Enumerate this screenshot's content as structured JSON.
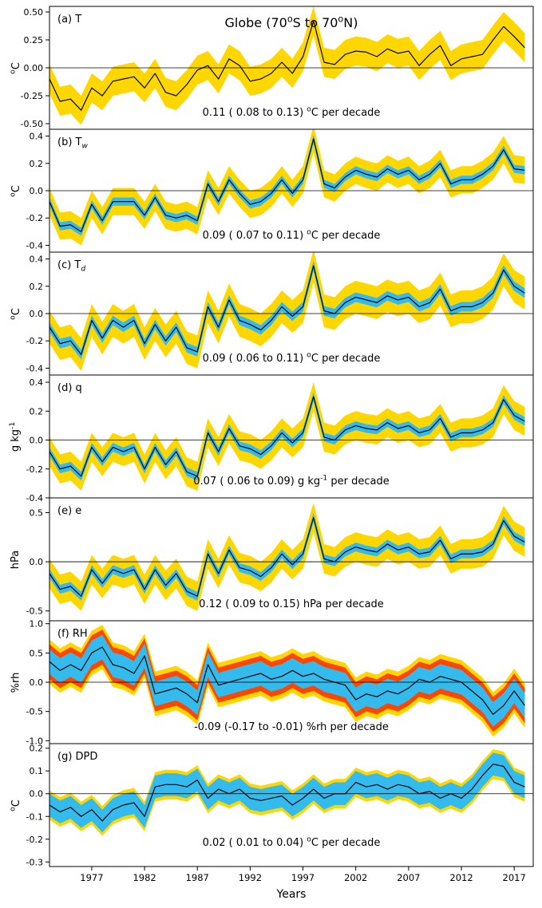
{
  "title": {
    "p1": "Globe (70",
    "s1": "o",
    "p2": "S to 70",
    "s2": "o",
    "p3": "N)"
  },
  "xlabel": "Years",
  "colors": {
    "band_yellow": "#FFD700",
    "band_cyan": "#33BBEE",
    "band_orange": "#FF4500",
    "line": "#000000"
  },
  "chart_data": {
    "type": "line",
    "start_year": 1973,
    "end_year": 2018,
    "x_range": [
      1973,
      2018.8
    ],
    "x_ticks": [
      1977,
      1982,
      1987,
      1992,
      1997,
      2002,
      2007,
      2012,
      2017
    ],
    "panels": [
      {
        "id": "a",
        "label_pre": "(a) T",
        "label_sub": "",
        "ylabel_pre": "",
        "ylabel_sup": "o",
        "ylabel_post": "C",
        "ylim": [
          -0.55,
          0.55
        ],
        "ytick_vals": [
          0.5,
          0.25,
          0.0,
          -0.25,
          -0.5
        ],
        "ytick_labels": [
          "0.50",
          "0.25",
          "0.00",
          "-0.25",
          "-0.50"
        ],
        "trend_pre": "0.11 ( 0.08 to  0.13) ",
        "trend_sup": "o",
        "trend_post": "C per decade",
        "bands": [
          {
            "color": "#FFD700",
            "half_width": 0.13
          }
        ],
        "line_color": "#000000",
        "values": [
          -0.1,
          -0.3,
          -0.28,
          -0.38,
          -0.18,
          -0.25,
          -0.12,
          -0.1,
          -0.08,
          -0.18,
          -0.05,
          -0.22,
          -0.25,
          -0.15,
          -0.02,
          0.02,
          -0.1,
          0.08,
          0.02,
          -0.12,
          -0.1,
          -0.05,
          0.05,
          -0.05,
          0.1,
          0.42,
          0.05,
          0.03,
          0.12,
          0.15,
          0.14,
          0.1,
          0.17,
          0.13,
          0.15,
          0.02,
          0.12,
          0.2,
          0.02,
          0.08,
          0.1,
          0.12,
          0.25,
          0.37,
          0.28,
          0.18
        ]
      },
      {
        "id": "b",
        "label_pre": "(b) T",
        "label_sub": "w",
        "ylabel_pre": "",
        "ylabel_sup": "o",
        "ylabel_post": "C",
        "ylim": [
          -0.45,
          0.45
        ],
        "ytick_vals": [
          0.4,
          0.2,
          0.0,
          -0.2,
          -0.4
        ],
        "ytick_labels": [
          "0.4",
          "0.2",
          "0.0",
          "-0.2",
          "-0.4"
        ],
        "trend_pre": "0.09 ( 0.07 to  0.11) ",
        "trend_sup": "o",
        "trend_post": "C per decade",
        "bands": [
          {
            "color": "#FFD700",
            "half_width": 0.1
          },
          {
            "color": "#33BBEE",
            "half_width": 0.03
          }
        ],
        "line_color": "#000000",
        "values": [
          -0.08,
          -0.26,
          -0.25,
          -0.3,
          -0.1,
          -0.22,
          -0.08,
          -0.08,
          -0.08,
          -0.18,
          -0.05,
          -0.18,
          -0.2,
          -0.18,
          -0.22,
          0.05,
          -0.08,
          0.08,
          -0.02,
          -0.1,
          -0.08,
          -0.02,
          0.08,
          -0.02,
          0.08,
          0.38,
          0.05,
          0.02,
          0.1,
          0.15,
          0.12,
          0.1,
          0.16,
          0.12,
          0.15,
          0.08,
          0.12,
          0.2,
          0.05,
          0.08,
          0.08,
          0.12,
          0.18,
          0.3,
          0.16,
          0.15
        ]
      },
      {
        "id": "c",
        "label_pre": "(c) T",
        "label_sub": "d",
        "ylabel_pre": "",
        "ylabel_sup": "o",
        "ylabel_post": "C",
        "ylim": [
          -0.45,
          0.45
        ],
        "ytick_vals": [
          0.4,
          0.2,
          0.0,
          -0.2,
          -0.4
        ],
        "ytick_labels": [
          "0.4",
          "0.2",
          "0.0",
          "-0.2",
          "-0.4"
        ],
        "trend_pre": "0.09 ( 0.06 to  0.11) ",
        "trend_sup": "o",
        "trend_post": "C per decade",
        "bands": [
          {
            "color": "#FFD700",
            "half_width": 0.12
          },
          {
            "color": "#33BBEE",
            "half_width": 0.035
          }
        ],
        "line_color": "#000000",
        "values": [
          -0.1,
          -0.22,
          -0.2,
          -0.3,
          -0.05,
          -0.18,
          -0.05,
          -0.1,
          -0.05,
          -0.22,
          -0.08,
          -0.2,
          -0.1,
          -0.25,
          -0.28,
          0.05,
          -0.1,
          0.1,
          -0.05,
          -0.08,
          -0.12,
          -0.05,
          0.05,
          -0.02,
          0.05,
          0.35,
          0.02,
          0.0,
          0.08,
          0.12,
          0.1,
          0.08,
          0.13,
          0.1,
          0.12,
          0.05,
          0.08,
          0.18,
          0.02,
          0.05,
          0.05,
          0.08,
          0.15,
          0.32,
          0.2,
          0.15
        ]
      },
      {
        "id": "d",
        "label_pre": "(d) q",
        "label_sub": "",
        "ylabel_pre": "g kg",
        "ylabel_sup": "-1",
        "ylabel_post": "",
        "ylim": [
          -0.4,
          0.45
        ],
        "ytick_vals": [
          0.4,
          0.2,
          0.0,
          -0.2,
          -0.4
        ],
        "ytick_labels": [
          "0.4",
          "0.2",
          "0.0",
          "-0.2",
          "-0.4"
        ],
        "trend_pre": "0.07 ( 0.06 to  0.09) g kg",
        "trend_sup": "-1",
        "trend_post": " per decade",
        "bands": [
          {
            "color": "#FFD700",
            "half_width": 0.1
          },
          {
            "color": "#33BBEE",
            "half_width": 0.03
          }
        ],
        "line_color": "#000000",
        "values": [
          -0.08,
          -0.2,
          -0.18,
          -0.25,
          -0.05,
          -0.15,
          -0.05,
          -0.08,
          -0.05,
          -0.2,
          -0.05,
          -0.17,
          -0.08,
          -0.22,
          -0.25,
          0.05,
          -0.08,
          0.08,
          -0.04,
          -0.06,
          -0.1,
          -0.04,
          0.05,
          -0.02,
          0.05,
          0.3,
          0.02,
          0.0,
          0.07,
          0.1,
          0.08,
          0.07,
          0.12,
          0.08,
          0.1,
          0.05,
          0.07,
          0.15,
          0.02,
          0.05,
          0.05,
          0.07,
          0.12,
          0.28,
          0.17,
          0.13
        ]
      },
      {
        "id": "e",
        "label_pre": "(e) e",
        "label_sub": "",
        "ylabel_pre": "hPa",
        "ylabel_sup": "",
        "ylabel_post": "",
        "ylim": [
          -0.6,
          0.65
        ],
        "ytick_vals": [
          0.5,
          0.0,
          -0.5
        ],
        "ytick_labels": [
          "0.5",
          "0.0",
          "-0.5"
        ],
        "trend_pre": "0.12 ( 0.09 to  0.15) hPa  per decade",
        "trend_sup": "",
        "trend_post": "",
        "bands": [
          {
            "color": "#FFD700",
            "half_width": 0.15
          },
          {
            "color": "#33BBEE",
            "half_width": 0.045
          }
        ],
        "line_color": "#000000",
        "values": [
          -0.12,
          -0.28,
          -0.25,
          -0.35,
          -0.08,
          -0.22,
          -0.08,
          -0.12,
          -0.08,
          -0.28,
          -0.08,
          -0.24,
          -0.12,
          -0.3,
          -0.35,
          0.08,
          -0.12,
          0.12,
          -0.06,
          -0.09,
          -0.15,
          -0.06,
          0.08,
          -0.03,
          0.08,
          0.45,
          0.03,
          0.0,
          0.1,
          0.15,
          0.12,
          0.1,
          0.18,
          0.12,
          0.15,
          0.08,
          0.1,
          0.22,
          0.03,
          0.08,
          0.08,
          0.1,
          0.18,
          0.42,
          0.26,
          0.2
        ]
      },
      {
        "id": "f",
        "label_pre": "(f) RH",
        "label_sub": "",
        "ylabel_pre": "%rh",
        "ylabel_sup": "",
        "ylabel_post": "",
        "ylim": [
          -1.05,
          1.05
        ],
        "ytick_vals": [
          1.0,
          0.5,
          0.0,
          -0.5,
          -1.0
        ],
        "ytick_labels": [
          "1.0",
          "0.5",
          "0.0",
          "-0.5",
          "-1.0"
        ],
        "trend_pre": "-0.09 (-0.17 to -0.01) %rh  per decade",
        "trend_sup": "",
        "trend_post": "",
        "bands": [
          {
            "color": "#FFD700",
            "half_width": 0.38
          },
          {
            "color": "#FF4500",
            "half_width": 0.3
          },
          {
            "color": "#33BBEE",
            "half_width": 0.21
          }
        ],
        "line_color": "#000000",
        "values": [
          0.35,
          0.2,
          0.3,
          0.2,
          0.5,
          0.6,
          0.3,
          0.25,
          0.15,
          0.45,
          -0.2,
          -0.15,
          -0.1,
          -0.2,
          -0.35,
          0.3,
          -0.05,
          0.0,
          0.05,
          0.1,
          0.15,
          0.05,
          0.1,
          0.2,
          0.1,
          0.15,
          0.05,
          0.0,
          -0.05,
          -0.3,
          -0.2,
          -0.25,
          -0.15,
          -0.2,
          -0.1,
          0.05,
          0.0,
          0.1,
          0.05,
          0.0,
          -0.15,
          -0.3,
          -0.55,
          -0.4,
          -0.15,
          -0.4
        ]
      },
      {
        "id": "g",
        "label_pre": "(g) DPD",
        "label_sub": "",
        "ylabel_pre": "",
        "ylabel_sup": "o",
        "ylabel_post": "C",
        "ylim": [
          -0.32,
          0.22
        ],
        "ytick_vals": [
          0.2,
          0.1,
          0.0,
          -0.1,
          -0.2,
          -0.3
        ],
        "ytick_labels": [
          "0.2",
          "0.1",
          "0.0",
          "-0.1",
          "-0.2",
          "-0.3"
        ],
        "trend_pre": "0.02 ( 0.01 to  0.04) ",
        "trend_sup": "o",
        "trend_post": "C per decade",
        "bands": [
          {
            "color": "#FFD700",
            "half_width": 0.065
          },
          {
            "color": "#33BBEE",
            "half_width": 0.05
          }
        ],
        "line_color": "#000000",
        "values": [
          -0.05,
          -0.08,
          -0.06,
          -0.1,
          -0.07,
          -0.12,
          -0.07,
          -0.05,
          -0.04,
          -0.1,
          0.03,
          0.04,
          0.04,
          0.03,
          0.06,
          -0.02,
          0.02,
          0.0,
          0.02,
          -0.02,
          -0.03,
          -0.02,
          -0.01,
          -0.05,
          -0.02,
          0.02,
          -0.02,
          0.0,
          0.0,
          0.05,
          0.03,
          0.04,
          0.02,
          0.04,
          0.03,
          0.0,
          0.01,
          -0.02,
          0.0,
          -0.02,
          0.02,
          0.08,
          0.13,
          0.12,
          0.05,
          0.03
        ]
      }
    ]
  }
}
